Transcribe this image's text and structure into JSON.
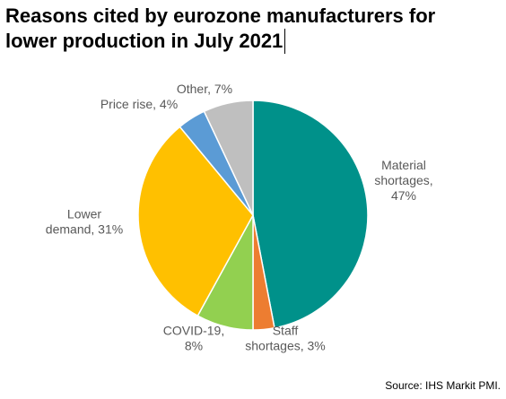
{
  "title": {
    "line1": "Reasons cited by eurozone manufacturers for",
    "line2": "lower production in July 2021"
  },
  "source": "Source: IHS Markit PMI.",
  "chart_data": {
    "type": "pie",
    "title": "Reasons cited by eurozone manufacturers for lower production in July 2021",
    "slices": [
      {
        "name": "Material shortages",
        "value": 47,
        "color": "#00918A",
        "label_lines": [
          "Material",
          "shortages,",
          "47%"
        ]
      },
      {
        "name": "Staff shortages",
        "value": 3,
        "color": "#ED7D31",
        "label_lines": [
          "Staff",
          "shortages, 3%"
        ]
      },
      {
        "name": "COVID-19",
        "value": 8,
        "color": "#92D050",
        "label_lines": [
          "COVID-19,",
          "8%"
        ]
      },
      {
        "name": "Lower demand",
        "value": 31,
        "color": "#FFC000",
        "label_lines": [
          "Lower",
          "demand, 31%"
        ]
      },
      {
        "name": "Price rise",
        "value": 4,
        "color": "#5B9BD5",
        "label_lines": [
          "Price rise, 4%"
        ]
      },
      {
        "name": "Other",
        "value": 7,
        "color": "#BFBFBF",
        "label_lines": [
          "Other, 7%"
        ]
      }
    ]
  }
}
